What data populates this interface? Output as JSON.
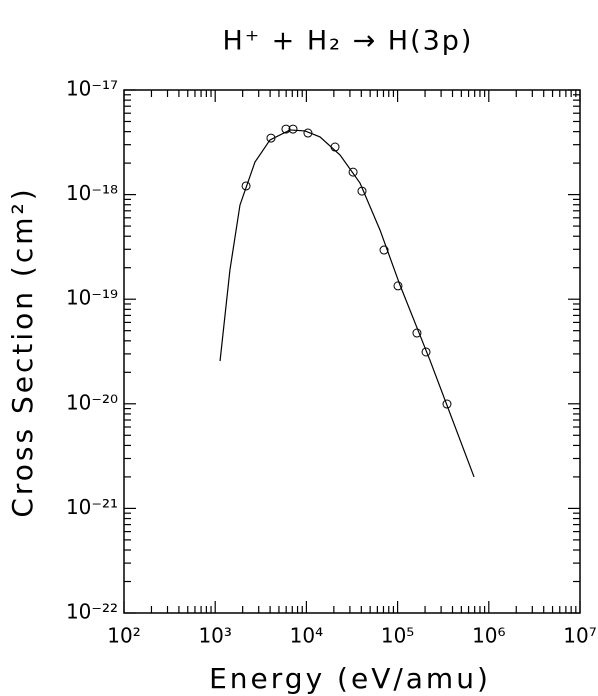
{
  "chart_data": {
    "type": "scatter",
    "title": "H⁺ + H₂ → H(3p)",
    "x_label": "Energy (eV/amu)",
    "y_label": "Cross Section (cm²)",
    "x_scale": "log",
    "y_scale": "log",
    "xlim": [
      100,
      10000000
    ],
    "ylim": [
      1e-22,
      1e-17
    ],
    "xticks": [
      {
        "value": 100,
        "label": "10²"
      },
      {
        "value": 1000,
        "label": "10³"
      },
      {
        "value": 10000,
        "label": "10⁴"
      },
      {
        "value": 100000,
        "label": "10⁵"
      },
      {
        "value": 1000000,
        "label": "10⁶"
      },
      {
        "value": 10000000,
        "label": "10⁷"
      }
    ],
    "yticks": [
      {
        "value": 1e-22,
        "label": "10⁻²²"
      },
      {
        "value": 1e-21,
        "label": "10⁻²¹"
      },
      {
        "value": 1e-20,
        "label": "10⁻²⁰"
      },
      {
        "value": 1e-19,
        "label": "10⁻¹⁹"
      },
      {
        "value": 1e-18,
        "label": "10⁻¹⁸"
      },
      {
        "value": 1e-17,
        "label": "10⁻¹⁷"
      }
    ],
    "series": [
      {
        "type": "scatter",
        "color": "#000000",
        "x": [
          2180,
          4090,
          5970,
          7130,
          10400,
          20600,
          32500,
          40700,
          71000,
          101000,
          163000,
          205000,
          348000
        ],
        "values": [
          1.21e-18,
          3.47e-18,
          4.23e-18,
          4.23e-18,
          3.88e-18,
          2.85e-18,
          1.64e-18,
          1.08e-18,
          2.95e-19,
          1.34e-19,
          4.75e-20,
          3.13e-20,
          9.95e-21
        ]
      },
      {
        "type": "line",
        "color": "#000000",
        "x": [
          1130,
          1450,
          1870,
          2730,
          3990,
          6610,
          9660,
          14100,
          23400,
          38700,
          64100,
          106000,
          226000,
          689000
        ],
        "values": [
          2.56e-20,
          1.9e-19,
          7.96e-19,
          2.05e-18,
          3.33e-18,
          4.15e-18,
          4.06e-18,
          3.56e-18,
          2.39e-18,
          1.29e-18,
          4.59e-19,
          1.37e-19,
          2.62e-20,
          2e-21
        ]
      }
    ]
  }
}
